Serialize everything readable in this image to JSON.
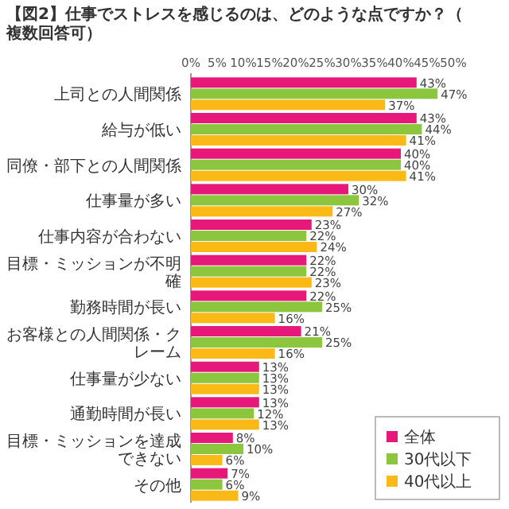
{
  "chart_data": {
    "type": "bar",
    "orientation": "horizontal",
    "title": "【図2】仕事でストレスを感じるのは、どのような点ですか？（複数回答可）",
    "categories": [
      "上司との人間関係",
      "給与が低い",
      "同僚・部下との人間関係",
      "仕事量が多い",
      "仕事内容が合わない",
      "目標・ミッションが不明確",
      "勤務時間が長い",
      "お客様との人間関係・クレーム",
      "仕事量が少ない",
      "通勤時間が長い",
      "目標・ミッションを達成できない",
      "その他"
    ],
    "series": [
      {
        "name": "全体",
        "color": "#e6197a",
        "values": [
          43,
          43,
          40,
          30,
          23,
          22,
          22,
          21,
          13,
          13,
          8,
          7
        ],
        "value_labels": [
          "43%",
          "43%",
          "40%",
          "30%",
          "23%",
          "22%",
          "22%",
          "21%",
          "13%",
          "13%",
          "8%",
          "7%"
        ]
      },
      {
        "name": "30代以下",
        "color": "#8cc63f",
        "values": [
          47,
          44,
          40,
          32,
          22,
          22,
          25,
          25,
          13,
          12,
          10,
          6
        ],
        "value_labels": [
          "47%",
          "44%",
          "40%",
          "32%",
          "22%",
          "22%",
          "25%",
          "25%",
          "13%",
          "12%",
          "10%",
          "6%"
        ]
      },
      {
        "name": "40代以上",
        "color": "#fbb917",
        "values": [
          37,
          41,
          41,
          27,
          24,
          23,
          16,
          16,
          13,
          13,
          6,
          9
        ],
        "value_labels": [
          "37%",
          "41%",
          "41%",
          "27%",
          "24%",
          "23%",
          "16%",
          "16%",
          "13%",
          "13%",
          "6%",
          "9%"
        ]
      }
    ],
    "xlim": [
      0,
      50
    ],
    "xticks": [
      {
        "value": 0,
        "label": "0%"
      },
      {
        "value": 5,
        "label": "5%"
      },
      {
        "value": 10,
        "label": "10%"
      },
      {
        "value": 15,
        "label": "15%"
      },
      {
        "value": 20,
        "label": "20%"
      },
      {
        "value": 25,
        "label": "25%"
      },
      {
        "value": 30,
        "label": "30%"
      },
      {
        "value": 35,
        "label": "35%"
      },
      {
        "value": 40,
        "label": "40%"
      },
      {
        "value": 45,
        "label": "45%"
      },
      {
        "value": 50,
        "label": "50%"
      }
    ],
    "legend": "bottom right"
  }
}
